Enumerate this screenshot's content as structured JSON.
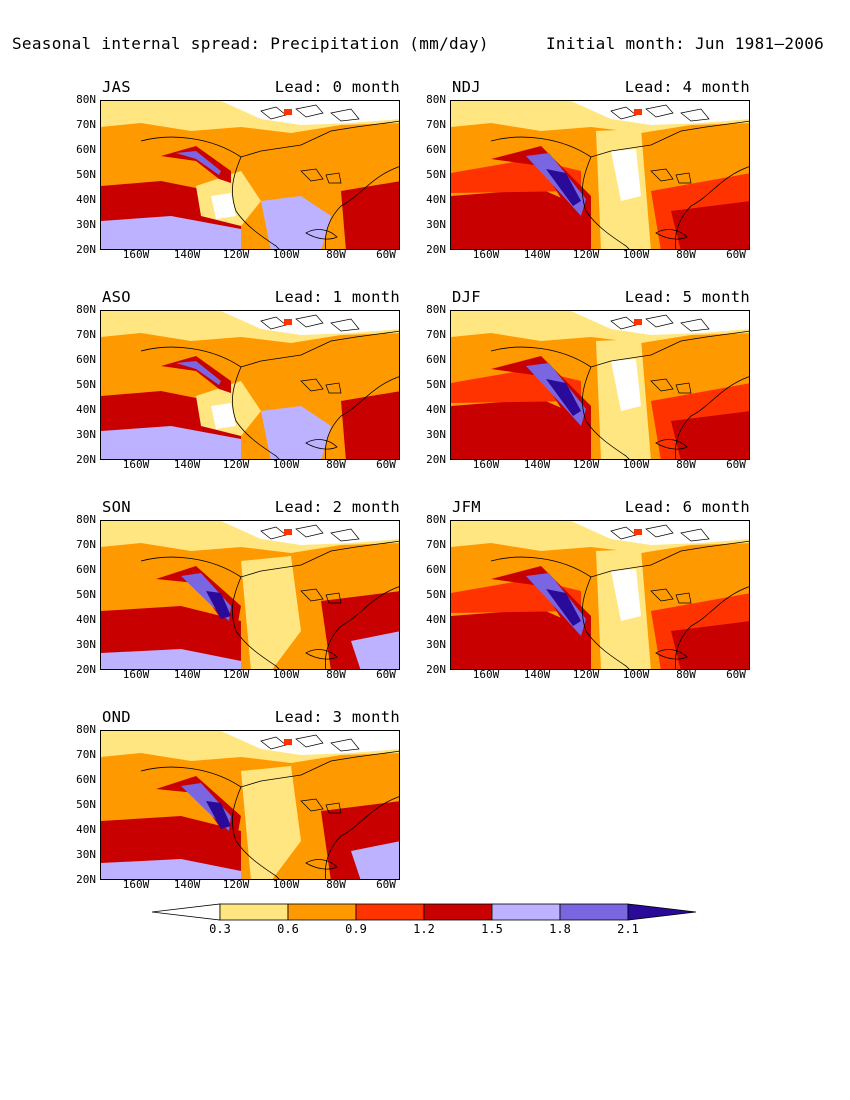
{
  "header": {
    "title": "Seasonal internal spread: Precipitation (mm/day)",
    "initial_month": "Initial month: Jun 1981–2006"
  },
  "axes": {
    "lat_labels": [
      "80N",
      "70N",
      "60N",
      "50N",
      "40N",
      "30N",
      "20N"
    ],
    "lon_labels": [
      "160W",
      "140W",
      "120W",
      "100W",
      "80W",
      "60W"
    ]
  },
  "panels": [
    {
      "season": "JAS",
      "lead": "Lead: 0 month",
      "pattern": "summer"
    },
    {
      "season": "NDJ",
      "lead": "Lead: 4 month",
      "pattern": "winter"
    },
    {
      "season": "ASO",
      "lead": "Lead: 1 month",
      "pattern": "summer"
    },
    {
      "season": "DJF",
      "lead": "Lead: 5 month",
      "pattern": "winter"
    },
    {
      "season": "SON",
      "lead": "Lead: 2 month",
      "pattern": "autumn"
    },
    {
      "season": "JFM",
      "lead": "Lead: 6 month",
      "pattern": "winter"
    },
    {
      "season": "OND",
      "lead": "Lead: 3 month",
      "pattern": "autumn"
    }
  ],
  "colorbar": {
    "levels": [
      "0.3",
      "0.6",
      "0.9",
      "1.2",
      "1.5",
      "1.8",
      "2.1"
    ],
    "colors": [
      "#ffffff",
      "#ffe680",
      "#ff9900",
      "#ff3300",
      "#c80000",
      "#bdb2ff",
      "#7a66e0",
      "#2a0a99"
    ]
  }
}
